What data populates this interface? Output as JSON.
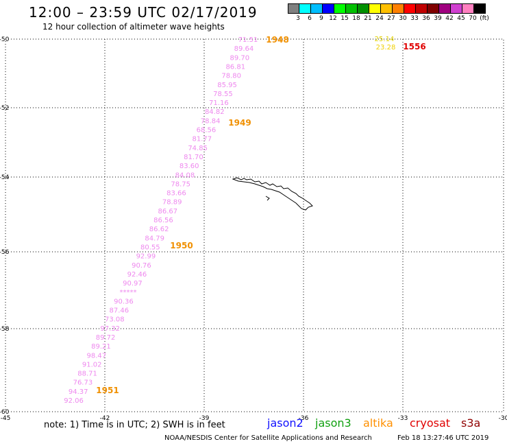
{
  "header": {
    "title": "12:00 – 23:59 UTC 02/17/2019",
    "subtitle": "12 hour collection of altimeter wave heights"
  },
  "colorbar": {
    "colors": [
      "#808080",
      "#00ffff",
      "#00bfff",
      "#0000ff",
      "#00ff00",
      "#00c000",
      "#009000",
      "#ffff00",
      "#ffc000",
      "#ff8000",
      "#ff0000",
      "#c00000",
      "#800000",
      "#a00080",
      "#d040d0",
      "#ff80c0",
      "#000000"
    ],
    "labels": [
      "3",
      "6",
      "9",
      "12",
      "15",
      "18",
      "21",
      "24",
      "27",
      "30",
      "33",
      "36",
      "39",
      "42",
      "45",
      "70",
      "(ft)"
    ]
  },
  "axes": {
    "lat_ticks": [
      "-50",
      "-52",
      "-54",
      "-56",
      "-58",
      "-60"
    ],
    "lon_ticks": [
      "-45",
      "-42",
      "-39",
      "-36",
      "-33",
      "-30"
    ]
  },
  "track": {
    "color": "#ee88ee",
    "values": [
      "71.51",
      "89.64",
      "89.70",
      "86.81",
      "78.80",
      "85.95",
      "78.55",
      "71.16",
      "84.82",
      "78.84",
      "68.56",
      "81.77",
      "74.85",
      "81.70",
      "83.60",
      "84.08",
      "78.75",
      "83.66",
      "78.89",
      "86.67",
      "86.56",
      "86.62",
      "84.79",
      "80.55",
      "92.99",
      "90.76",
      "92.46",
      "90.97",
      "*****",
      "90.36",
      "87.46",
      "73.08",
      "97.32",
      "89.72",
      "89.21",
      "98.47",
      "91.02",
      "88.71",
      "76.73",
      "94.37",
      "92.06"
    ]
  },
  "times": [
    "1948",
    "1949",
    "1950",
    "1951"
  ],
  "other": {
    "values": [
      "25.14",
      "23.28"
    ],
    "time": "1556"
  },
  "note": "note: 1) Time is in UTC; 2) SWH is in feet",
  "legend": [
    {
      "name": "jason2",
      "color": "#1010ff"
    },
    {
      "name": "jason3",
      "color": "#10a010"
    },
    {
      "name": "altika",
      "color": "#ff9000"
    },
    {
      "name": "cryosat",
      "color": "#e00000"
    },
    {
      "name": "s3a",
      "color": "#900000"
    }
  ],
  "footer": {
    "left": "NOAA/NESDIS Center for Satellite Applications and Research",
    "right": "Feb 18 13:27:46 UTC 2019"
  }
}
